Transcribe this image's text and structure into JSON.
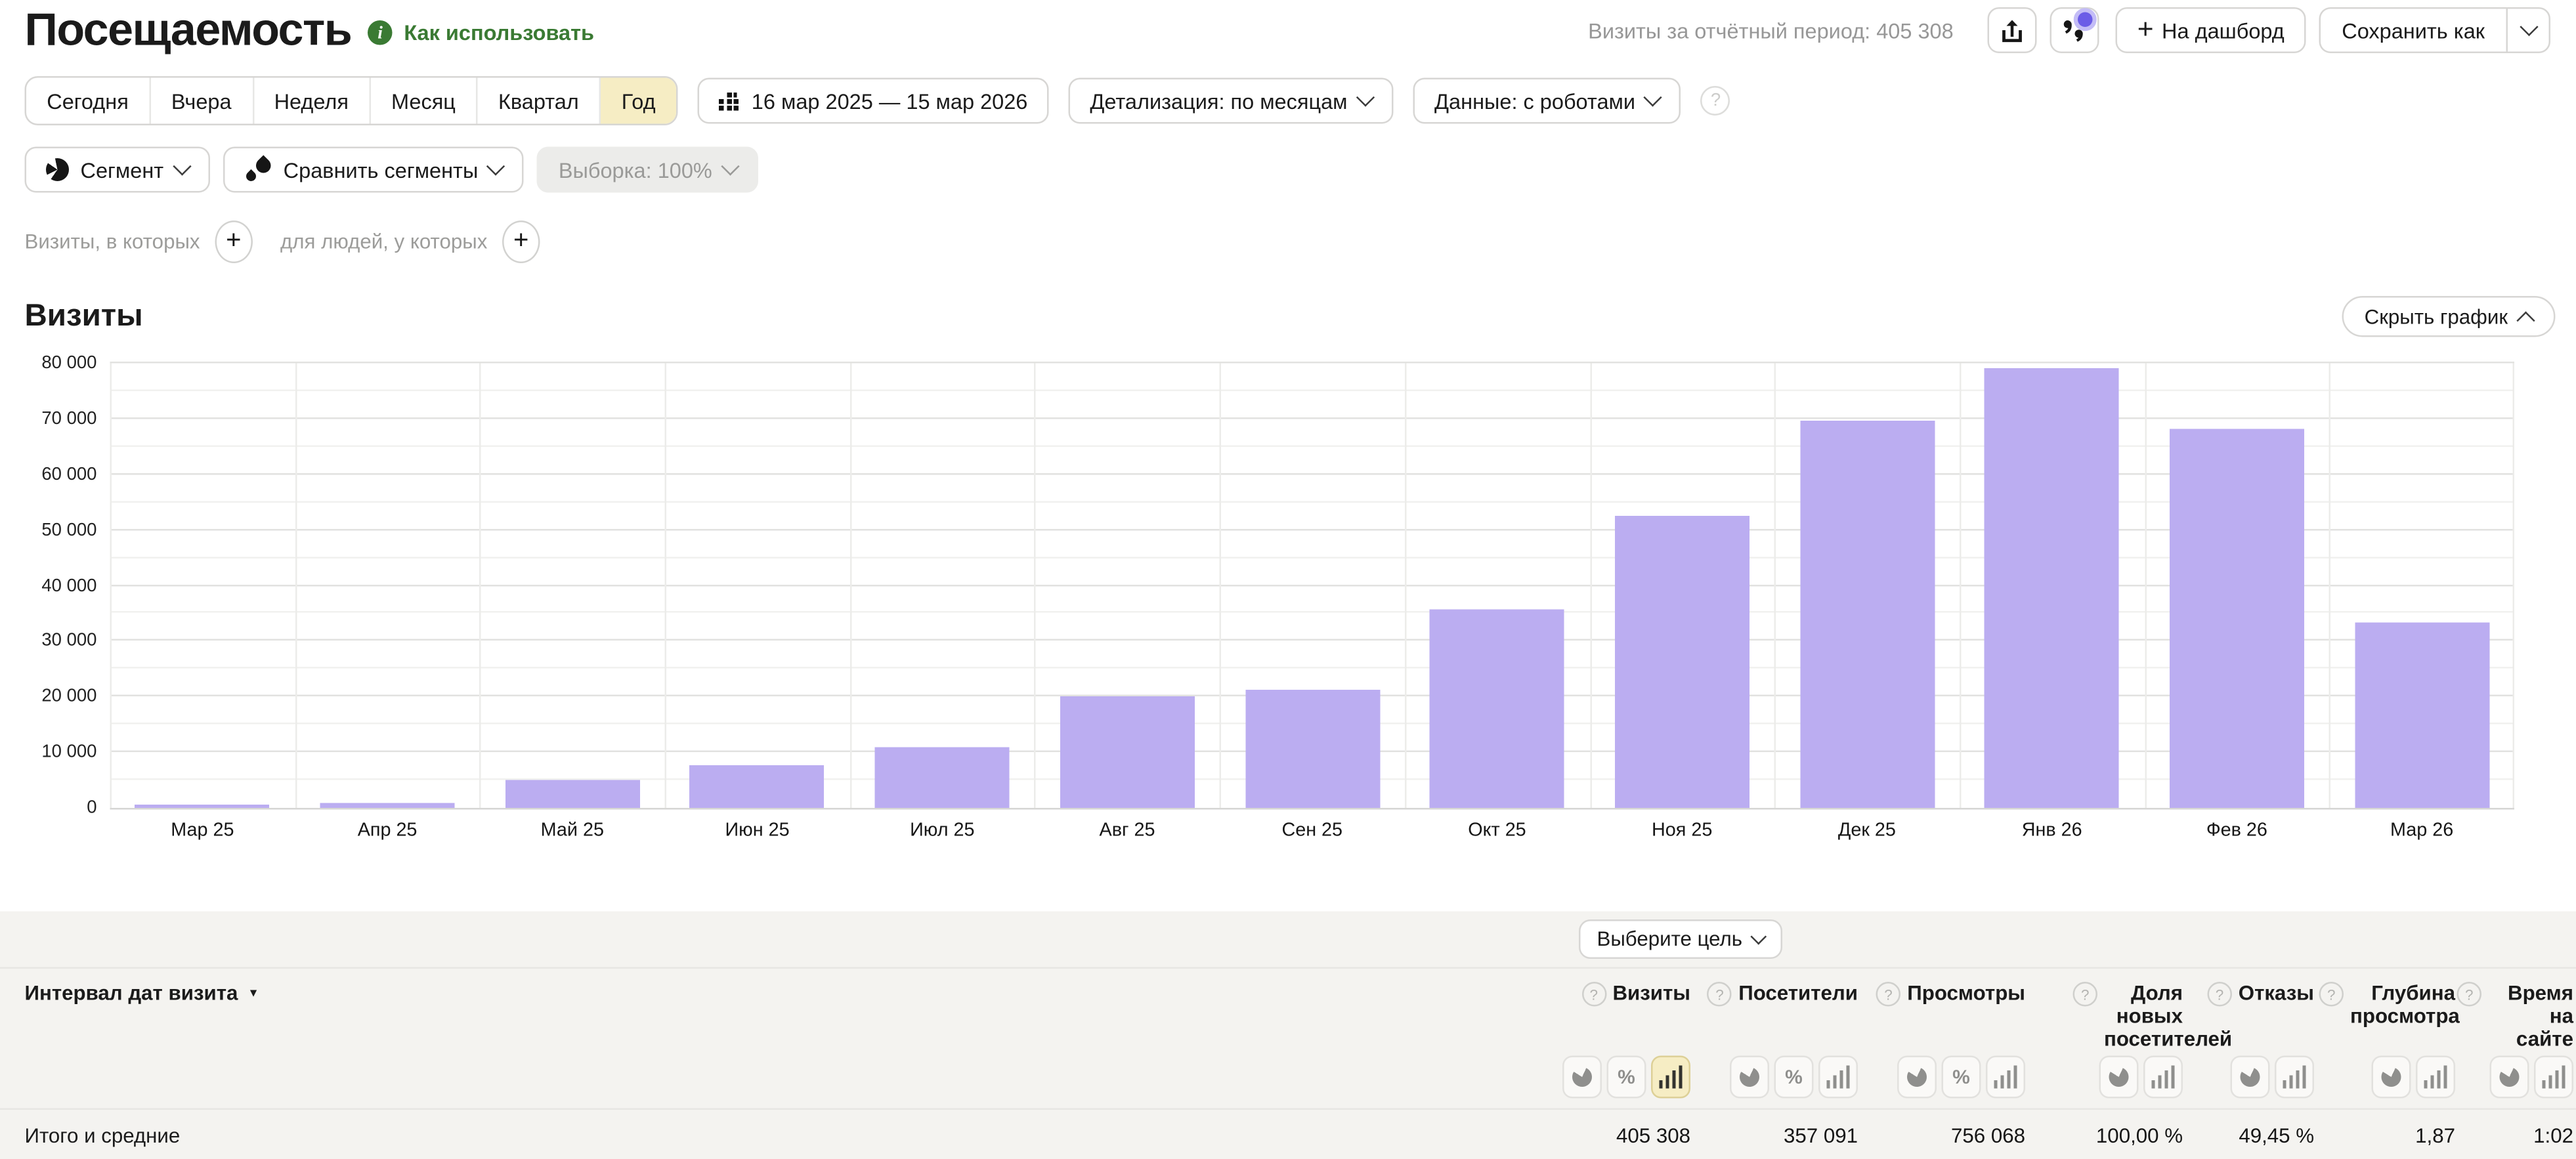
{
  "page": {
    "title": "Посещаемость",
    "help_link": "Как использовать",
    "period_summary": "Визиты за отчётный период: 405 308",
    "dashboard_button": "На дашборд",
    "save_as_button": "Сохранить как"
  },
  "period_bar": {
    "tabs": [
      {
        "label": "Сегодня",
        "selected": false
      },
      {
        "label": "Вчера",
        "selected": false
      },
      {
        "label": "Неделя",
        "selected": false
      },
      {
        "label": "Месяц",
        "selected": false
      },
      {
        "label": "Квартал",
        "selected": false
      },
      {
        "label": "Год",
        "selected": true
      }
    ],
    "date_range": "16 мар 2025 — 15 мар 2026",
    "detalization": "Детализация: по месяцам",
    "data_mode": "Данные: с роботами"
  },
  "segment_bar": {
    "segment": "Сегмент",
    "compare": "Сравнить сегменты",
    "sampling": "Выборка: 100%"
  },
  "filters": {
    "visits_label": "Визиты, в которых",
    "people_label": "для людей, у которых"
  },
  "chart_section": {
    "title": "Визиты",
    "hide_chart": "Скрыть график"
  },
  "chart_data": {
    "type": "bar",
    "title": "Визиты",
    "categories": [
      "Мар 25",
      "Апр 25",
      "Май 25",
      "Июн 25",
      "Июл 25",
      "Авг 25",
      "Сен 25",
      "Окт 25",
      "Ноя 25",
      "Дек 25",
      "Янв 26",
      "Фев 26",
      "Мар 26"
    ],
    "values": [
      700,
      1000,
      5000,
      7700,
      10800,
      20000,
      21200,
      35800,
      52500,
      69700,
      79200,
      68300,
      33400
    ],
    "total_visits": "405 308",
    "ylim": [
      0,
      80000
    ],
    "ytick_step": 10000,
    "ytick_labels": [
      "0",
      "10 000",
      "20 000",
      "30 000",
      "40 000",
      "50 000",
      "60 000",
      "70 000",
      "80 000"
    ],
    "grid": true,
    "legend": "none",
    "bar_color": "#bbadf1"
  },
  "table": {
    "goal_button": "Выберите цель",
    "dimension_header": "Интервал дат визита",
    "columns": [
      {
        "label": "Визиты",
        "toggles": [
          "pie",
          "percent",
          "bars"
        ],
        "active": "bars"
      },
      {
        "label": "Посетители",
        "toggles": [
          "pie",
          "percent",
          "bars"
        ],
        "active": null
      },
      {
        "label": "Просмотры",
        "toggles": [
          "pie",
          "percent",
          "bars"
        ],
        "active": null
      },
      {
        "label": "Доля новых посетителей",
        "toggles": [
          "pie",
          "bars"
        ],
        "active": null
      },
      {
        "label": "Отказы",
        "toggles": [
          "pie",
          "bars"
        ],
        "active": null
      },
      {
        "label": "Глубина просмотра",
        "toggles": [
          "pie",
          "bars"
        ],
        "active": null
      },
      {
        "label": "Время на сайте",
        "toggles": [
          "pie",
          "bars"
        ],
        "active": null
      }
    ],
    "totals": {
      "label": "Итого и средние",
      "values": [
        "405 308",
        "357 091",
        "756 068",
        "100,00 %",
        "49,45 %",
        "1,87",
        "1:02"
      ]
    }
  },
  "colors": {
    "bar_purple": "#bbadf1",
    "selected_yellow": "#f6edc4",
    "link_green": "#3a7a33",
    "notification_purple": "#6b5ce7",
    "muted_text": "#979797",
    "panel_gray": "#f4f3f0"
  }
}
